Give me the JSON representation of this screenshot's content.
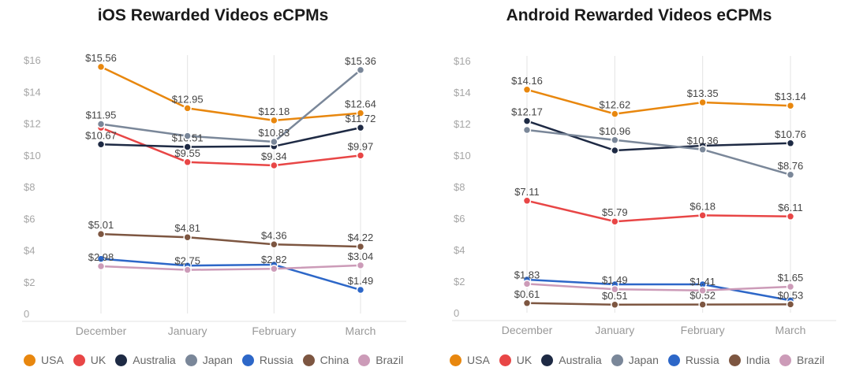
{
  "chart_data": [
    {
      "type": "line",
      "title": "iOS Rewarded Videos eCPMs",
      "categories": [
        "December",
        "January",
        "February",
        "March"
      ],
      "y_ticks": [
        "0",
        "$2",
        "$4",
        "$6",
        "$8",
        "$10",
        "$12",
        "$14",
        "$16"
      ],
      "ylim": [
        0,
        16
      ],
      "grid": "vertical",
      "legend_position": "bottom",
      "series": [
        {
          "name": "USA",
          "color": "#E8870E",
          "values": [
            15.56,
            12.95,
            12.18,
            12.64
          ],
          "labels": [
            "$15.56",
            "$12.95",
            "$12.18",
            "$12.64"
          ]
        },
        {
          "name": "UK",
          "color": "#E84646",
          "values": [
            11.72,
            9.55,
            9.34,
            9.97
          ],
          "labels": [
            "",
            "$9.55",
            "$9.34",
            "$9.97"
          ]
        },
        {
          "name": "Australia",
          "color": "#1E2A44",
          "values": [
            10.67,
            10.51,
            10.55,
            11.72
          ],
          "labels": [
            "$10.67",
            "$10.51",
            "",
            "$11.72"
          ]
        },
        {
          "name": "Japan",
          "color": "#7A8799",
          "values": [
            11.95,
            11.2,
            10.83,
            15.36
          ],
          "labels": [
            "$11.95",
            "",
            "$10.83",
            "$15.36"
          ]
        },
        {
          "name": "Russia",
          "color": "#2D67C8",
          "values": [
            3.45,
            3.02,
            3.08,
            1.49
          ],
          "labels": [
            "",
            "",
            "",
            "$1.49"
          ]
        },
        {
          "name": "China",
          "color": "#7D5641",
          "values": [
            5.01,
            4.81,
            4.36,
            4.22
          ],
          "labels": [
            "$5.01",
            "$4.81",
            "$4.36",
            "$4.22"
          ]
        },
        {
          "name": "Brazil",
          "color": "#CC9BB8",
          "values": [
            2.98,
            2.75,
            2.82,
            3.04
          ],
          "labels": [
            "$2.98",
            "$2.75",
            "$2.82",
            "$3.04"
          ]
        }
      ]
    },
    {
      "type": "line",
      "title": "Android Rewarded Videos eCPMs",
      "categories": [
        "December",
        "January",
        "February",
        "March"
      ],
      "y_ticks": [
        "0",
        "$2",
        "$4",
        "$6",
        "$8",
        "$10",
        "$12",
        "$14",
        "$16"
      ],
      "ylim": [
        0,
        16
      ],
      "grid": "vertical",
      "legend_position": "bottom",
      "series": [
        {
          "name": "USA",
          "color": "#E8870E",
          "values": [
            14.16,
            12.62,
            13.35,
            13.14
          ],
          "labels": [
            "$14.16",
            "$12.62",
            "$13.35",
            "$13.14"
          ]
        },
        {
          "name": "UK",
          "color": "#E84646",
          "values": [
            7.11,
            5.79,
            6.18,
            6.11
          ],
          "labels": [
            "$7.11",
            "$5.79",
            "$6.18",
            "$6.11"
          ]
        },
        {
          "name": "Australia",
          "color": "#1E2A44",
          "values": [
            12.17,
            10.3,
            10.6,
            10.76
          ],
          "labels": [
            "$12.17",
            "",
            "",
            "$10.76"
          ]
        },
        {
          "name": "Japan",
          "color": "#7A8799",
          "values": [
            11.6,
            10.96,
            10.36,
            8.76
          ],
          "labels": [
            "",
            "$10.96",
            "$10.36",
            "$8.76"
          ]
        },
        {
          "name": "Russia",
          "color": "#2D67C8",
          "values": [
            2.1,
            1.8,
            1.8,
            0.78
          ],
          "labels": [
            "",
            "",
            "",
            ""
          ]
        },
        {
          "name": "India",
          "color": "#7D5641",
          "values": [
            0.61,
            0.51,
            0.52,
            0.53
          ],
          "labels": [
            "$0.61",
            "$0.51",
            "$0.52",
            "$0.53"
          ]
        },
        {
          "name": "Brazil",
          "color": "#CC9BB8",
          "values": [
            1.83,
            1.49,
            1.41,
            1.65
          ],
          "labels": [
            "$1.83",
            "$1.49",
            "$1.41",
            "$1.65"
          ]
        }
      ]
    }
  ]
}
